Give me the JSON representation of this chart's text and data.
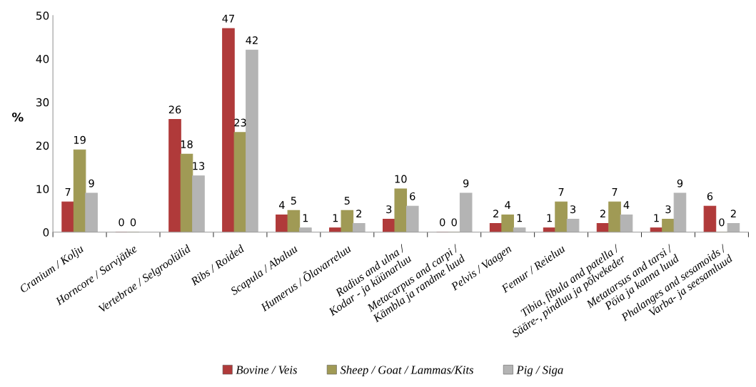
{
  "chart_data": {
    "type": "bar",
    "ylabel": "%",
    "categories": [
      "Cranium / Kolju",
      "Horncore / Sarvjätke",
      "Vertebrae / Selgroolülid",
      "Ribs / Roided",
      "Scapula / Abaluu",
      "Humerus / Õlavarreluu",
      "Radius and ulna /\nKodar - ja küünarluu",
      "Metacarpus and carpi /\nKämbla ja randme luud",
      "Pelvis / Vaagen",
      "Femur / Reieluu",
      "Tibia, fibula and patella /\nSääre-, pindluu ja põlvekeder",
      "Metatarsus and tarsi /\nPöia ja kanna luud",
      "Phalanges and sesamoids /\nVarba- ja seesamluud"
    ],
    "series": [
      {
        "name": "Bovine / Veis",
        "color": "#b03a3a",
        "values": [
          7,
          0,
          26,
          47,
          4,
          1,
          3,
          0,
          2,
          1,
          2,
          1,
          6
        ]
      },
      {
        "name": "Sheep / Goat / Lammas/Kits",
        "color": "#a09a55",
        "values": [
          19,
          0,
          18,
          23,
          5,
          5,
          10,
          0,
          4,
          7,
          7,
          3,
          0
        ]
      },
      {
        "name": "Pig / Siga",
        "color": "#b4b4b4",
        "values": [
          9,
          null,
          13,
          42,
          1,
          2,
          6,
          9,
          1,
          3,
          4,
          9,
          2
        ]
      }
    ],
    "ylim": [
      0,
      50
    ],
    "yticks": [
      0,
      10,
      20,
      30,
      40,
      50
    ],
    "grid": false,
    "legend": "bottom",
    "data_labels": true
  }
}
